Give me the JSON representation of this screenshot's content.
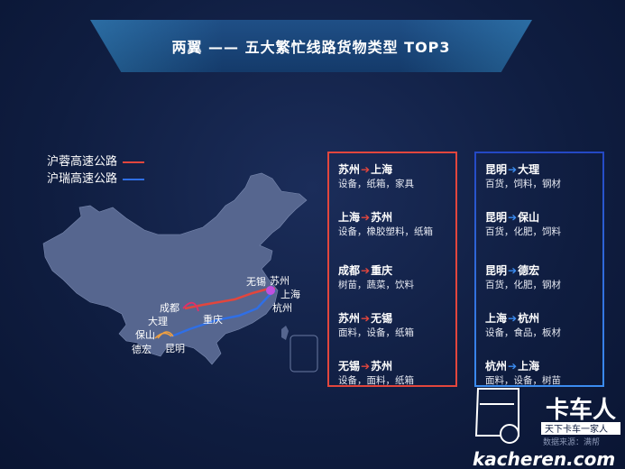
{
  "title": "两翼 —— 五大繁忙线路货物类型 TOP3",
  "legend": [
    {
      "label": "沪蓉高速公路",
      "color": "#e2463d"
    },
    {
      "label": "沪瑞高速公路",
      "color": "#2f6fe6"
    }
  ],
  "map_labels": {
    "chengdu": "成都",
    "chongqing": "重庆",
    "dali": "大理",
    "baoshan": "保山",
    "dehong": "德宏",
    "kunming": "昆明",
    "wuxi": "无锡",
    "suzhou": "苏州",
    "shanghai": "上海",
    "hangzhou": "杭州"
  },
  "red_routes": [
    {
      "from": "苏州",
      "to": "上海",
      "goods": "设备，纸箱，家具"
    },
    {
      "from": "上海",
      "to": "苏州",
      "goods": "设备，橡胶塑料，纸箱"
    },
    {
      "from": "成都",
      "to": "重庆",
      "goods": "树苗，蔬菜，饮料"
    },
    {
      "from": "苏州",
      "to": "无锡",
      "goods": "面料，设备，纸箱"
    },
    {
      "from": "无锡",
      "to": "苏州",
      "goods": "设备，面料，纸箱"
    }
  ],
  "blue_routes": [
    {
      "from": "昆明",
      "to": "大理",
      "goods": "百货，饲料，钢材"
    },
    {
      "from": "昆明",
      "to": "保山",
      "goods": "百货，化肥，饲料"
    },
    {
      "from": "昆明",
      "to": "德宏",
      "goods": "百货，化肥，钢材"
    },
    {
      "from": "上海",
      "to": "杭州",
      "goods": "设备，食品，板材"
    },
    {
      "from": "杭州",
      "to": "上海",
      "goods": "面料，设备，树苗"
    }
  ],
  "logo": {
    "brand": "卡车人",
    "slogan": "天下卡车一家人",
    "site": "kacheren.com",
    "source": "数据来源：满帮"
  }
}
